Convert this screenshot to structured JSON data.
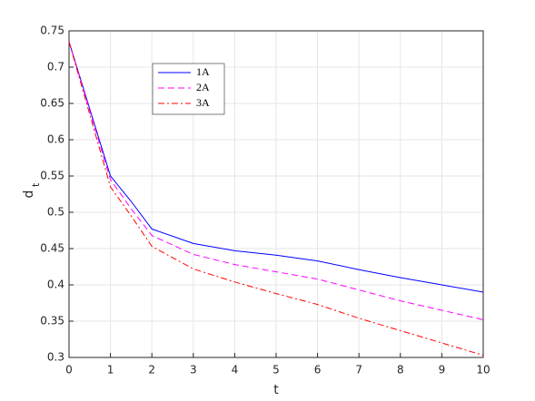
{
  "chart_data": {
    "type": "line",
    "xlabel": "t",
    "ylabel": "d",
    "ylabel_subscript": "t",
    "x": [
      0,
      1,
      1.5,
      2,
      3,
      4,
      5,
      6,
      7,
      8,
      9,
      10
    ],
    "series": [
      {
        "name": "1A",
        "color": "#0000ff",
        "dash": "none",
        "values": [
          0.735,
          0.55,
          0.515,
          0.477,
          0.457,
          0.447,
          0.441,
          0.433,
          0.421,
          0.41,
          0.4,
          0.39
        ]
      },
      {
        "name": "2A",
        "color": "#ff00ff",
        "dash": "7 4",
        "values": [
          0.735,
          0.545,
          0.505,
          0.468,
          0.442,
          0.428,
          0.418,
          0.408,
          0.393,
          0.378,
          0.365,
          0.352
        ]
      },
      {
        "name": "3A",
        "color": "#ff0000",
        "dash": "7 3 2 3",
        "values": [
          0.735,
          0.535,
          0.495,
          0.453,
          0.422,
          0.404,
          0.388,
          0.373,
          0.354,
          0.337,
          0.32,
          0.303
        ]
      }
    ],
    "xlim": [
      0,
      10
    ],
    "xticks": [
      0,
      1,
      2,
      3,
      4,
      5,
      6,
      7,
      8,
      9,
      10
    ],
    "ylim": [
      0.3,
      0.75
    ],
    "yticks": [
      0.3,
      0.35,
      0.4,
      0.45,
      0.5,
      0.55,
      0.6,
      0.65,
      0.7,
      0.75
    ],
    "grid": true,
    "legend": "upper-left"
  }
}
